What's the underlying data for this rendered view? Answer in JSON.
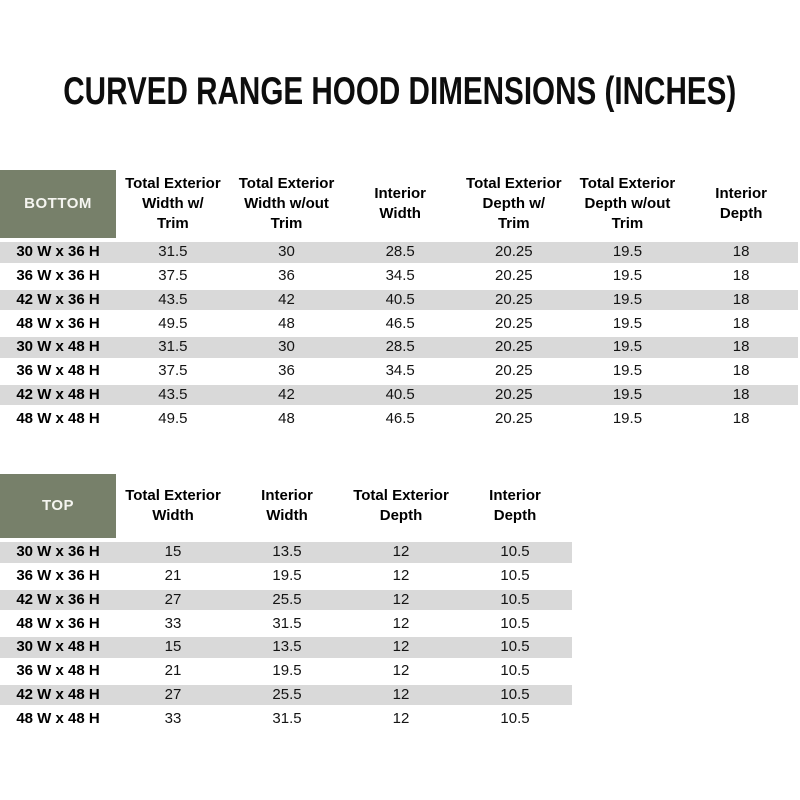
{
  "title": "CURVED RANGE HOOD DIMENSIONS (INCHES)",
  "colors": {
    "header_green": "#77806A",
    "stripe_gray": "#D9D9D9",
    "header_text": "#FFFFFF",
    "body_text": "#1b1b1b"
  },
  "tables": [
    {
      "name": "BOTTOM",
      "columns": [
        "Total Exterior\nWidth w/\nTrim",
        "Total Exterior\nWidth w/out\nTrim",
        "Interior\nWidth",
        "Total Exterior\nDepth w/\nTrim",
        "Total Exterior\nDepth w/out\nTrim",
        "Interior\nDepth"
      ],
      "rows": [
        {
          "label": "30 W x 36 H",
          "values": [
            "31.5",
            "30",
            "28.5",
            "20.25",
            "19.5",
            "18"
          ]
        },
        {
          "label": "36 W x 36 H",
          "values": [
            "37.5",
            "36",
            "34.5",
            "20.25",
            "19.5",
            "18"
          ]
        },
        {
          "label": "42 W x 36 H",
          "values": [
            "43.5",
            "42",
            "40.5",
            "20.25",
            "19.5",
            "18"
          ]
        },
        {
          "label": "48 W x 36 H",
          "values": [
            "49.5",
            "48",
            "46.5",
            "20.25",
            "19.5",
            "18"
          ]
        },
        {
          "label": "30 W x 48 H",
          "values": [
            "31.5",
            "30",
            "28.5",
            "20.25",
            "19.5",
            "18"
          ]
        },
        {
          "label": "36 W x 48 H",
          "values": [
            "37.5",
            "36",
            "34.5",
            "20.25",
            "19.5",
            "18"
          ]
        },
        {
          "label": "42 W x 48 H",
          "values": [
            "43.5",
            "42",
            "40.5",
            "20.25",
            "19.5",
            "18"
          ]
        },
        {
          "label": "48 W x 48 H",
          "values": [
            "49.5",
            "48",
            "46.5",
            "20.25",
            "19.5",
            "18"
          ]
        }
      ]
    },
    {
      "name": "TOP",
      "columns": [
        "Total Exterior\nWidth",
        "Interior\nWidth",
        "Total Exterior\nDepth",
        "Interior\nDepth"
      ],
      "rows": [
        {
          "label": "30 W x 36 H",
          "values": [
            "15",
            "13.5",
            "12",
            "10.5"
          ]
        },
        {
          "label": "36 W x 36 H",
          "values": [
            "21",
            "19.5",
            "12",
            "10.5"
          ]
        },
        {
          "label": "42 W x 36 H",
          "values": [
            "27",
            "25.5",
            "12",
            "10.5"
          ]
        },
        {
          "label": "48 W x 36 H",
          "values": [
            "33",
            "31.5",
            "12",
            "10.5"
          ]
        },
        {
          "label": "30 W x 48 H",
          "values": [
            "15",
            "13.5",
            "12",
            "10.5"
          ]
        },
        {
          "label": "36 W x 48 H",
          "values": [
            "21",
            "19.5",
            "12",
            "10.5"
          ]
        },
        {
          "label": "42 W x 48 H",
          "values": [
            "27",
            "25.5",
            "12",
            "10.5"
          ]
        },
        {
          "label": "48 W x 48 H",
          "values": [
            "33",
            "31.5",
            "12",
            "10.5"
          ]
        }
      ]
    }
  ]
}
